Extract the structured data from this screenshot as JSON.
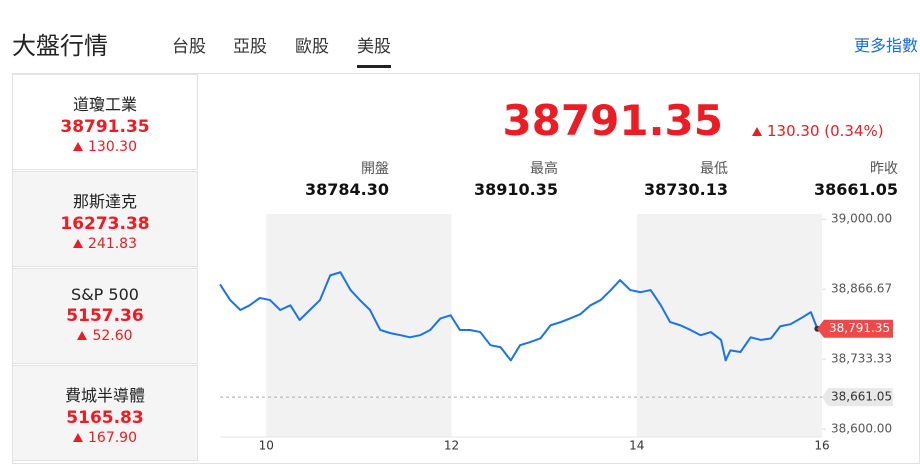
{
  "header": {
    "title": "大盤行情",
    "tabs": [
      "台股",
      "亞股",
      "歐股",
      "美股"
    ],
    "active_tab": 3,
    "more": "更多指數"
  },
  "indices": [
    {
      "name": "道瓊工業",
      "value": "38791.35",
      "change": "130.30"
    },
    {
      "name": "那斯達克",
      "value": "16273.38",
      "change": "241.83"
    },
    {
      "name": "S&P 500",
      "value": "5157.36",
      "change": "52.60"
    },
    {
      "name": "費城半導體",
      "value": "5165.83",
      "change": "167.90"
    }
  ],
  "active_index": 0,
  "quote": {
    "price": "38791.35",
    "change": "130.30 (0.34%)",
    "stats": [
      {
        "label": "開盤",
        "value": "38784.30"
      },
      {
        "label": "最高",
        "value": "38910.35"
      },
      {
        "label": "最低",
        "value": "38730.13"
      },
      {
        "label": "昨收",
        "value": "38661.05"
      }
    ]
  },
  "chart_data": {
    "type": "line",
    "x": [
      9.5,
      9.61,
      9.72,
      9.82,
      9.93,
      10.04,
      10.15,
      10.26,
      10.36,
      10.47,
      10.58,
      10.69,
      10.8,
      10.91,
      11.01,
      11.12,
      11.23,
      11.34,
      11.45,
      11.55,
      11.66,
      11.77,
      11.88,
      11.99,
      12.09,
      12.2,
      12.31,
      12.42,
      12.53,
      12.64,
      12.74,
      12.85,
      12.96,
      13.07,
      13.18,
      13.28,
      13.39,
      13.5,
      13.61,
      13.72,
      13.82,
      13.93,
      14.04,
      14.15,
      14.26,
      14.36,
      14.47,
      14.58,
      14.69,
      14.8,
      14.91,
      14.96,
      15.01,
      15.12,
      15.23,
      15.34,
      15.45,
      15.55,
      15.66,
      15.77,
      15.88,
      15.95
    ],
    "series": [
      {
        "color": "#1a73e8",
        "values": [
          38876,
          38846,
          38827,
          38836,
          38850,
          38846,
          38827,
          38836,
          38808,
          38827,
          38846,
          38893,
          38899,
          38865,
          38846,
          38827,
          38789,
          38783,
          38779,
          38775,
          38779,
          38789,
          38811,
          38817,
          38789,
          38789,
          38785,
          38760,
          38756,
          38731,
          38760,
          38766,
          38773,
          38798,
          38804,
          38811,
          38819,
          38836,
          38846,
          38865,
          38884,
          38865,
          38861,
          38865,
          38836,
          38804,
          38798,
          38789,
          38779,
          38785,
          38770,
          38731,
          38750,
          38747,
          38775,
          38770,
          38773,
          38796,
          38800,
          38811,
          38823,
          38791.35
        ]
      }
    ],
    "xlim": [
      9.5,
      16
    ],
    "xticks": [
      10,
      12,
      14,
      16
    ],
    "ylim": [
      38585,
      39010
    ],
    "yticks": [
      {
        "value": 38600,
        "label": "38,600.00"
      },
      {
        "value": 38733.33,
        "label": "38,733.33"
      },
      {
        "value": 38866.67,
        "label": "38,866.67"
      },
      {
        "value": 39000,
        "label": "39,000.00"
      }
    ],
    "annotations": [
      {
        "value": 38661.05,
        "label": "38,661.05"
      },
      {
        "value": 38791.35,
        "label": "38,791.35"
      }
    ]
  }
}
